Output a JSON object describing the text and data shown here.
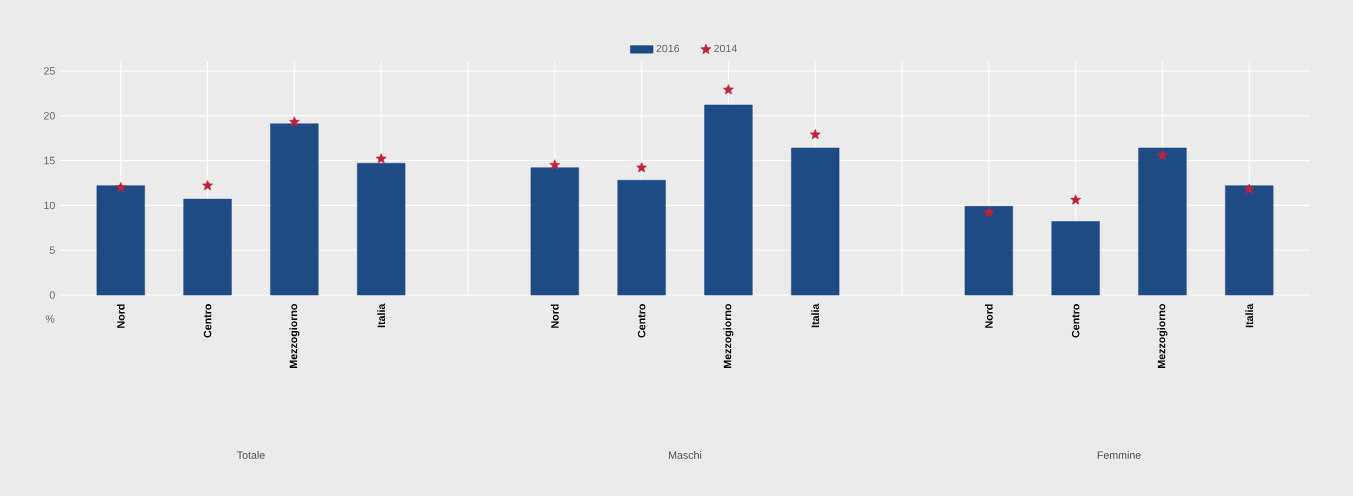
{
  "chart_data": {
    "type": "bar",
    "categories": [
      "Nord",
      "Centro",
      "Mezzogiorno",
      "Italia",
      null,
      "Nord",
      "Centro",
      "Mezzogiorno",
      "Italia",
      null,
      "Nord",
      "Centro",
      "Mezzogiorno",
      "Italia"
    ],
    "series": [
      {
        "name": "2016",
        "color": "#1f4b85",
        "values": [
          12.2,
          10.7,
          19.1,
          14.7,
          null,
          14.2,
          12.8,
          21.2,
          16.4,
          null,
          9.9,
          8.2,
          16.4,
          12.2
        ]
      },
      {
        "name": "2014",
        "type": "scatter",
        "marker": "star",
        "color": "#c0223b",
        "values": [
          12.0,
          12.2,
          19.3,
          15.2,
          null,
          14.5,
          14.2,
          22.9,
          17.9,
          null,
          9.2,
          10.6,
          15.6,
          11.8
        ]
      }
    ],
    "ylabel": "%",
    "ylim": [
      0,
      26
    ],
    "yticks": [
      0,
      5,
      10,
      15,
      20,
      25
    ],
    "annotations": [
      "Totale",
      "Maschi",
      "Femmine"
    ],
    "grid": true,
    "legend": "top"
  }
}
